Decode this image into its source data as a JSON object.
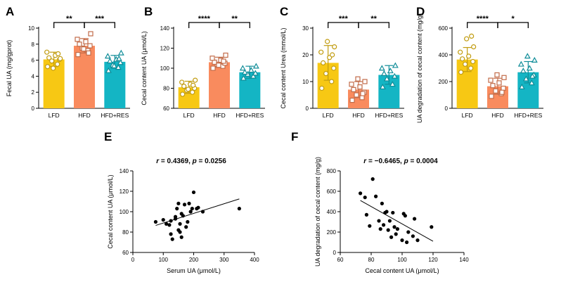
{
  "chart_data": [
    {
      "panel": "A",
      "type": "bar",
      "ylabel": "Fecal UA (mg/gprot)",
      "ylim": [
        0,
        10
      ],
      "yticks": [
        0,
        2,
        4,
        6,
        8,
        10
      ],
      "categories": [
        "LFD",
        "HFD",
        "HFD+RES"
      ],
      "colors": [
        "#f7c814",
        "#f98b5e",
        "#14b5c4"
      ],
      "markers": [
        "circle",
        "square",
        "triangle"
      ],
      "means": [
        6.1,
        7.8,
        5.8
      ],
      "sd": [
        0.9,
        0.9,
        0.8
      ],
      "points": [
        [
          5.2,
          5.5,
          5.9,
          6.1,
          6.3,
          6.6,
          7.0,
          6.2,
          5.0,
          6.8
        ],
        [
          6.7,
          7.2,
          7.5,
          7.8,
          8.0,
          8.3,
          8.6,
          9.3,
          7.4,
          6.9
        ],
        [
          4.7,
          5.1,
          5.4,
          5.7,
          5.9,
          6.1,
          6.5,
          6.9,
          5.3,
          6.2
        ]
      ],
      "significance": [
        {
          "pair": [
            0,
            1
          ],
          "label": "**"
        },
        {
          "pair": [
            1,
            2
          ],
          "label": "***"
        }
      ]
    },
    {
      "panel": "B",
      "type": "bar",
      "ylabel": "Cecal content UA (μmol/L)",
      "ylim": [
        60,
        140
      ],
      "yticks": [
        60,
        80,
        100,
        120,
        140
      ],
      "categories": [
        "LFD",
        "HFD",
        "HFD+RES"
      ],
      "colors": [
        "#f7c814",
        "#f98b5e",
        "#14b5c4"
      ],
      "markers": [
        "circle",
        "square",
        "triangle"
      ],
      "means": [
        81,
        106,
        96
      ],
      "sd": [
        6,
        5,
        6
      ],
      "points": [
        [
          74,
          76,
          78,
          80,
          82,
          84,
          86,
          88,
          79,
          83
        ],
        [
          100,
          102,
          104,
          105,
          106,
          108,
          110,
          113,
          103,
          107
        ],
        [
          90,
          92,
          94,
          95,
          96,
          98,
          100,
          102
        ]
      ],
      "significance": [
        {
          "pair": [
            0,
            1
          ],
          "label": "****"
        },
        {
          "pair": [
            1,
            2
          ],
          "label": "**"
        }
      ]
    },
    {
      "panel": "C",
      "type": "bar",
      "ylabel": "Cecal content Urea (mmol/L)",
      "ylim": [
        0,
        30
      ],
      "yticks": [
        0,
        10,
        20,
        30
      ],
      "categories": [
        "LFD",
        "HFD",
        "HFD+RES"
      ],
      "colors": [
        "#f7c814",
        "#f98b5e",
        "#14b5c4"
      ],
      "markers": [
        "circle",
        "square",
        "triangle"
      ],
      "means": [
        17,
        7,
        12.5
      ],
      "sd": [
        6.5,
        3,
        3.5
      ],
      "points": [
        [
          7.5,
          10,
          13,
          15,
          17,
          19,
          21,
          23,
          25,
          20
        ],
        [
          3,
          4,
          5,
          6,
          7,
          8,
          9,
          10,
          11,
          5.5
        ],
        [
          8,
          9,
          11,
          12,
          13,
          14,
          15,
          16
        ]
      ],
      "significance": [
        {
          "pair": [
            0,
            1
          ],
          "label": "***"
        },
        {
          "pair": [
            1,
            2
          ],
          "label": "**"
        }
      ]
    },
    {
      "panel": "D",
      "type": "bar",
      "ylabel": "UA degradation of cecal content (mg/g)",
      "ylim": [
        0,
        600
      ],
      "yticks": [
        0,
        200,
        400,
        600
      ],
      "categories": [
        "LFD",
        "HFD",
        "HFD+RES"
      ],
      "colors": [
        "#f7c814",
        "#f98b5e",
        "#14b5c4"
      ],
      "markers": [
        "circle",
        "square",
        "triangle"
      ],
      "means": [
        365,
        165,
        270
      ],
      "sd": [
        90,
        60,
        80
      ],
      "points": [
        [
          270,
          300,
          330,
          350,
          370,
          390,
          420,
          460,
          520,
          540
        ],
        [
          90,
          110,
          130,
          150,
          170,
          190,
          210,
          230,
          250,
          120
        ],
        [
          160,
          190,
          220,
          250,
          280,
          300,
          330,
          360,
          390,
          240
        ]
      ],
      "significance": [
        {
          "pair": [
            0,
            1
          ],
          "label": "****"
        },
        {
          "pair": [
            1,
            2
          ],
          "label": "*"
        }
      ]
    },
    {
      "panel": "E",
      "type": "scatter",
      "title": "r = 0.4369, p = 0.0256",
      "title_parts": {
        "r_sym": "r",
        "r_eq": " = 0.4369, ",
        "p_sym": "p",
        "p_eq": " = 0.0256"
      },
      "xlabel": "Serum UA (μmol/L)",
      "ylabel": "Cecal content UA (μmol/L)",
      "xlim": [
        0,
        400
      ],
      "ylim": [
        60,
        140
      ],
      "xticks": [
        0,
        100,
        200,
        300,
        400
      ],
      "yticks": [
        60,
        80,
        100,
        120,
        140
      ],
      "x": [
        75,
        100,
        110,
        120,
        125,
        130,
        140,
        145,
        150,
        150,
        155,
        160,
        160,
        165,
        170,
        175,
        180,
        185,
        190,
        195,
        200,
        210,
        215,
        230,
        350,
        140,
        155,
        125
      ],
      "y": [
        90,
        92,
        88,
        87,
        78,
        73,
        95,
        103,
        108,
        82,
        80,
        98,
        75,
        96,
        107,
        85,
        90,
        108,
        100,
        103,
        119,
        103,
        104,
        100,
        103,
        93,
        88,
        91
      ],
      "fit": {
        "x": [
          75,
          350
        ],
        "y": [
          86.5,
          112.5
        ]
      }
    },
    {
      "panel": "F",
      "type": "scatter",
      "title": "r = −0.6465, p = 0.0004",
      "title_parts": {
        "r_sym": "r",
        "r_eq": " = −0.6465, ",
        "p_sym": "p",
        "p_eq": " = 0.0004"
      },
      "xlabel": "Cecal content UA (μmol/L)",
      "ylabel": "UA degradation of cecal content (mg/g)",
      "xlim": [
        60,
        140
      ],
      "ylim": [
        0,
        800
      ],
      "xticks": [
        60,
        80,
        100,
        120,
        140
      ],
      "yticks": [
        0,
        200,
        400,
        600,
        800
      ],
      "x": [
        73,
        76,
        77,
        79,
        81,
        83,
        85,
        86,
        87,
        88,
        89,
        90,
        91,
        92,
        93,
        95,
        96,
        97,
        100,
        101,
        102,
        103,
        104,
        107,
        108,
        110,
        119,
        94
      ],
      "y": [
        580,
        540,
        370,
        260,
        720,
        550,
        310,
        230,
        480,
        270,
        390,
        400,
        220,
        310,
        150,
        250,
        180,
        230,
        120,
        380,
        360,
        100,
        200,
        160,
        330,
        120,
        250,
        390
      ],
      "fit": {
        "x": [
          73,
          120
        ],
        "y": [
          510,
          110
        ]
      }
    }
  ]
}
